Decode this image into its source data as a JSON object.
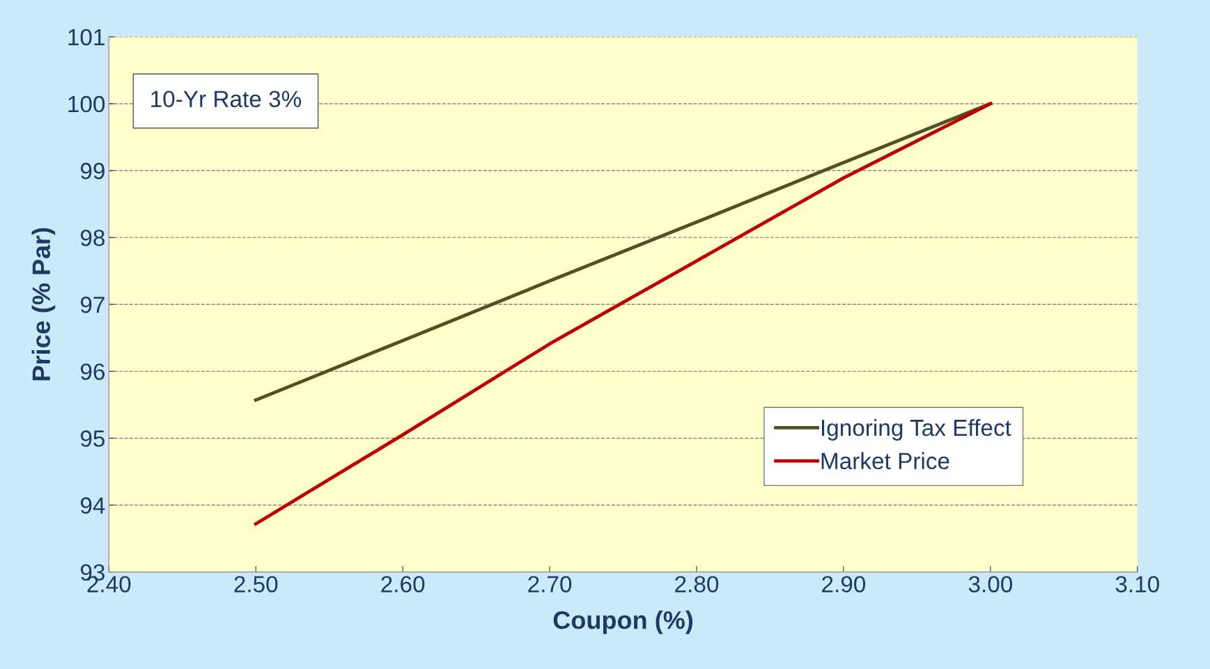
{
  "chart_data": {
    "type": "line",
    "xlabel": "Coupon (%)",
    "ylabel": "Price (% Par)",
    "x": [
      2.5,
      2.6,
      2.7,
      2.8,
      2.9,
      3.0
    ],
    "series": [
      {
        "name": "Ignoring Tax Effect",
        "color": "#4f5124",
        "values": [
          95.57,
          96.46,
          97.35,
          98.23,
          99.12,
          100.0
        ]
      },
      {
        "name": "Market Price",
        "color": "#c00000",
        "values": [
          93.72,
          95.05,
          96.41,
          97.65,
          98.89,
          100.0
        ]
      }
    ],
    "xlim": [
      2.4,
      3.1
    ],
    "xticks": [
      {
        "value": 2.4,
        "label": "2.40"
      },
      {
        "value": 2.5,
        "label": "2.50"
      },
      {
        "value": 2.6,
        "label": "2.60"
      },
      {
        "value": 2.7,
        "label": "2.70"
      },
      {
        "value": 2.8,
        "label": "2.80"
      },
      {
        "value": 2.9,
        "label": "2.90"
      },
      {
        "value": 3.0,
        "label": "3.00"
      },
      {
        "value": 3.1,
        "label": "3.10"
      }
    ],
    "ylim": [
      93,
      101
    ],
    "yticks": [
      93,
      94,
      95,
      96,
      97,
      98,
      99,
      100,
      101
    ],
    "grid": "y",
    "legend": "bottom right",
    "marker": "none",
    "line_style": "solid",
    "annotations": [
      "10-Yr Rate 3%"
    ]
  }
}
